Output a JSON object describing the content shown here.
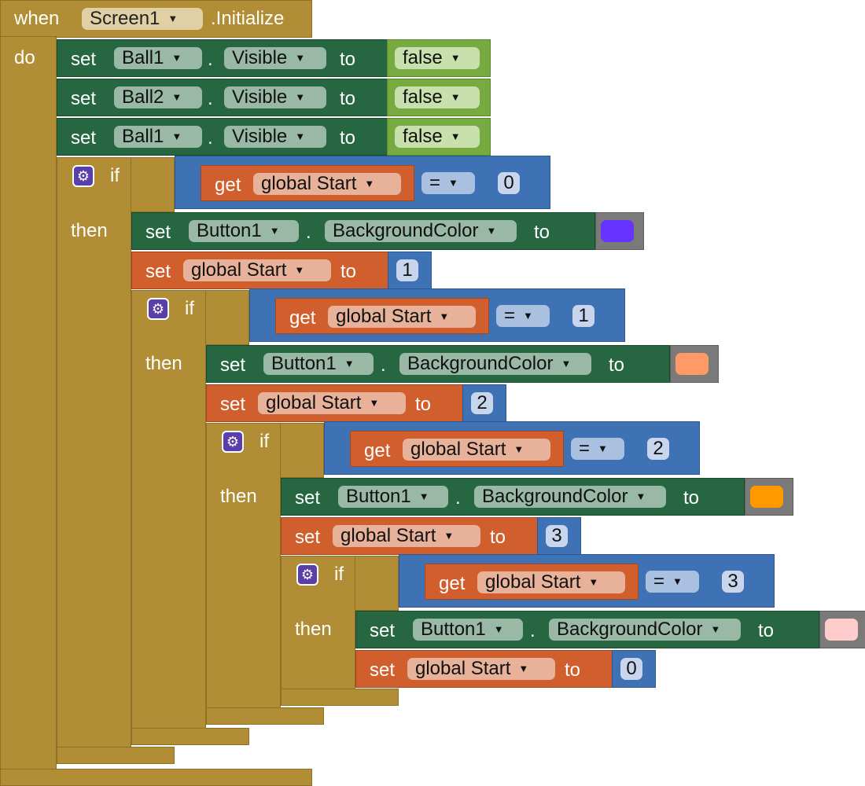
{
  "event": {
    "when": "when",
    "component": "Screen1",
    "event_name": ".Initialize",
    "do": "do"
  },
  "kw": {
    "set": "set",
    "get": "get",
    "to": "to",
    "dot": ".",
    "if": "if",
    "then": "then"
  },
  "visible_sets": [
    {
      "component": "Ball1",
      "property": "Visible",
      "value": "false"
    },
    {
      "component": "Ball2",
      "property": "Visible",
      "value": "false"
    },
    {
      "component": "Ball1",
      "property": "Visible",
      "value": "false"
    }
  ],
  "variable": "global Start",
  "compare_op": "=",
  "if_blocks": [
    {
      "compare_value": "0",
      "component": "Button1",
      "property": "BackgroundColor",
      "color": "#6633ff",
      "new_value": "1"
    },
    {
      "compare_value": "1",
      "component": "Button1",
      "property": "BackgroundColor",
      "color": "#ff9966",
      "new_value": "2"
    },
    {
      "compare_value": "2",
      "component": "Button1",
      "property": "BackgroundColor",
      "color": "#ff9900",
      "new_value": "3"
    },
    {
      "compare_value": "3",
      "component": "Button1",
      "property": "BackgroundColor",
      "color": "#ffcccc",
      "new_value": "0"
    }
  ]
}
